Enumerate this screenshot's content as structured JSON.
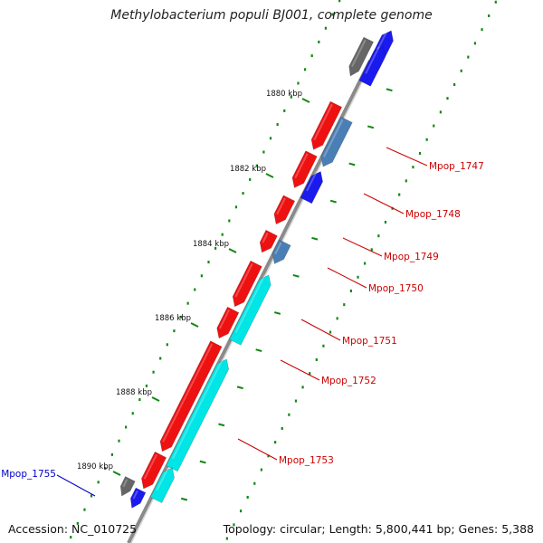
{
  "title": "Methylobacterium populi BJ001, complete genome",
  "accession": "Accession: NC_010725",
  "topology": "Topology: circular; Length: 5,800,441 bp; Genes: 5,388",
  "colors": {
    "backbone": "#8a8a8a",
    "forward_gene": "#ee1111",
    "reverse_cds": "#00e5e5",
    "reverse_gene_alt": "#4a7fb5",
    "blue_gene": "#1a1aee",
    "gray_gene": "#666666",
    "tick": "#118811",
    "label_red": "#cc0000",
    "label_blue": "#0000cc"
  },
  "kbp_ticks": [
    "1880 kbp",
    "1882 kbp",
    "1884 kbp",
    "1886 kbp",
    "1888 kbp",
    "1890 kbp"
  ],
  "gene_labels": [
    {
      "name": "Mpop_1747",
      "color": "red"
    },
    {
      "name": "Mpop_1748",
      "color": "red"
    },
    {
      "name": "Mpop_1749",
      "color": "red"
    },
    {
      "name": "Mpop_1750",
      "color": "red"
    },
    {
      "name": "Mpop_1751",
      "color": "red"
    },
    {
      "name": "Mpop_1752",
      "color": "red"
    },
    {
      "name": "Mpop_1753",
      "color": "red"
    },
    {
      "name": "Mpop_1755",
      "color": "blue"
    }
  ]
}
